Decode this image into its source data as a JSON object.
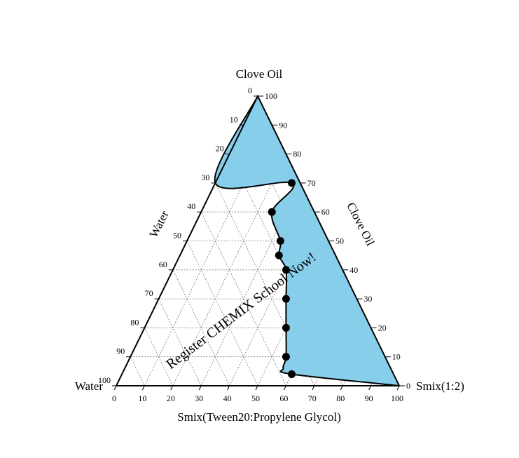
{
  "chart_data": {
    "type": "ternary",
    "vertex_labels": {
      "top": "Clove Oil",
      "left": "Water",
      "right": "Smix(1:2)"
    },
    "axis_labels": {
      "left": "Water",
      "right": "Clove Oil",
      "bottom": "Smix(Tween20:Propylene Glycol)"
    },
    "left_ticks": [
      "0",
      "10",
      "20",
      "30",
      "40",
      "50",
      "60",
      "70",
      "80",
      "90",
      "100"
    ],
    "right_ticks": [
      "100",
      "90",
      "80",
      "70",
      "60",
      "50",
      "40",
      "30",
      "20",
      "10",
      "0"
    ],
    "bottom_ticks": [
      "0",
      "10",
      "20",
      "30",
      "40",
      "50",
      "60",
      "70",
      "80",
      "90",
      "100"
    ],
    "grid": true,
    "watermark": "Register CHEMIX School Now!",
    "colors": {
      "region_fill": "#87CEEB",
      "line": "#000000",
      "grid": "#777777"
    },
    "region_label": "",
    "points": [
      {
        "smix": 27,
        "oil": 70,
        "water": 3
      },
      {
        "smix": 25,
        "oil": 60,
        "water": 15
      },
      {
        "smix": 33,
        "oil": 50,
        "water": 17
      },
      {
        "smix": 35,
        "oil": 45,
        "water": 20
      },
      {
        "smix": 40,
        "oil": 40,
        "water": 20
      },
      {
        "smix": 45,
        "oil": 30,
        "water": 25
      },
      {
        "smix": 50,
        "oil": 20,
        "water": 30
      },
      {
        "smix": 55,
        "oil": 10,
        "water": 35
      },
      {
        "smix": 60,
        "oil": 4,
        "water": 36
      }
    ],
    "boundary": [
      {
        "smix": 0,
        "oil": 100,
        "water": 0
      },
      {
        "smix": 0,
        "oil": 70,
        "water": 30
      },
      {
        "smix": 27,
        "oil": 70,
        "water": 3
      },
      {
        "smix": 25,
        "oil": 60,
        "water": 15
      },
      {
        "smix": 33,
        "oil": 50,
        "water": 17
      },
      {
        "smix": 35,
        "oil": 45,
        "water": 20
      },
      {
        "smix": 40,
        "oil": 40,
        "water": 20
      },
      {
        "smix": 45,
        "oil": 30,
        "water": 25
      },
      {
        "smix": 50,
        "oil": 20,
        "water": 30
      },
      {
        "smix": 55,
        "oil": 10,
        "water": 35
      },
      {
        "smix": 56,
        "oil": 6,
        "water": 38
      },
      {
        "smix": 60,
        "oil": 4,
        "water": 36
      },
      {
        "smix": 100,
        "oil": 0,
        "water": 0
      }
    ]
  }
}
